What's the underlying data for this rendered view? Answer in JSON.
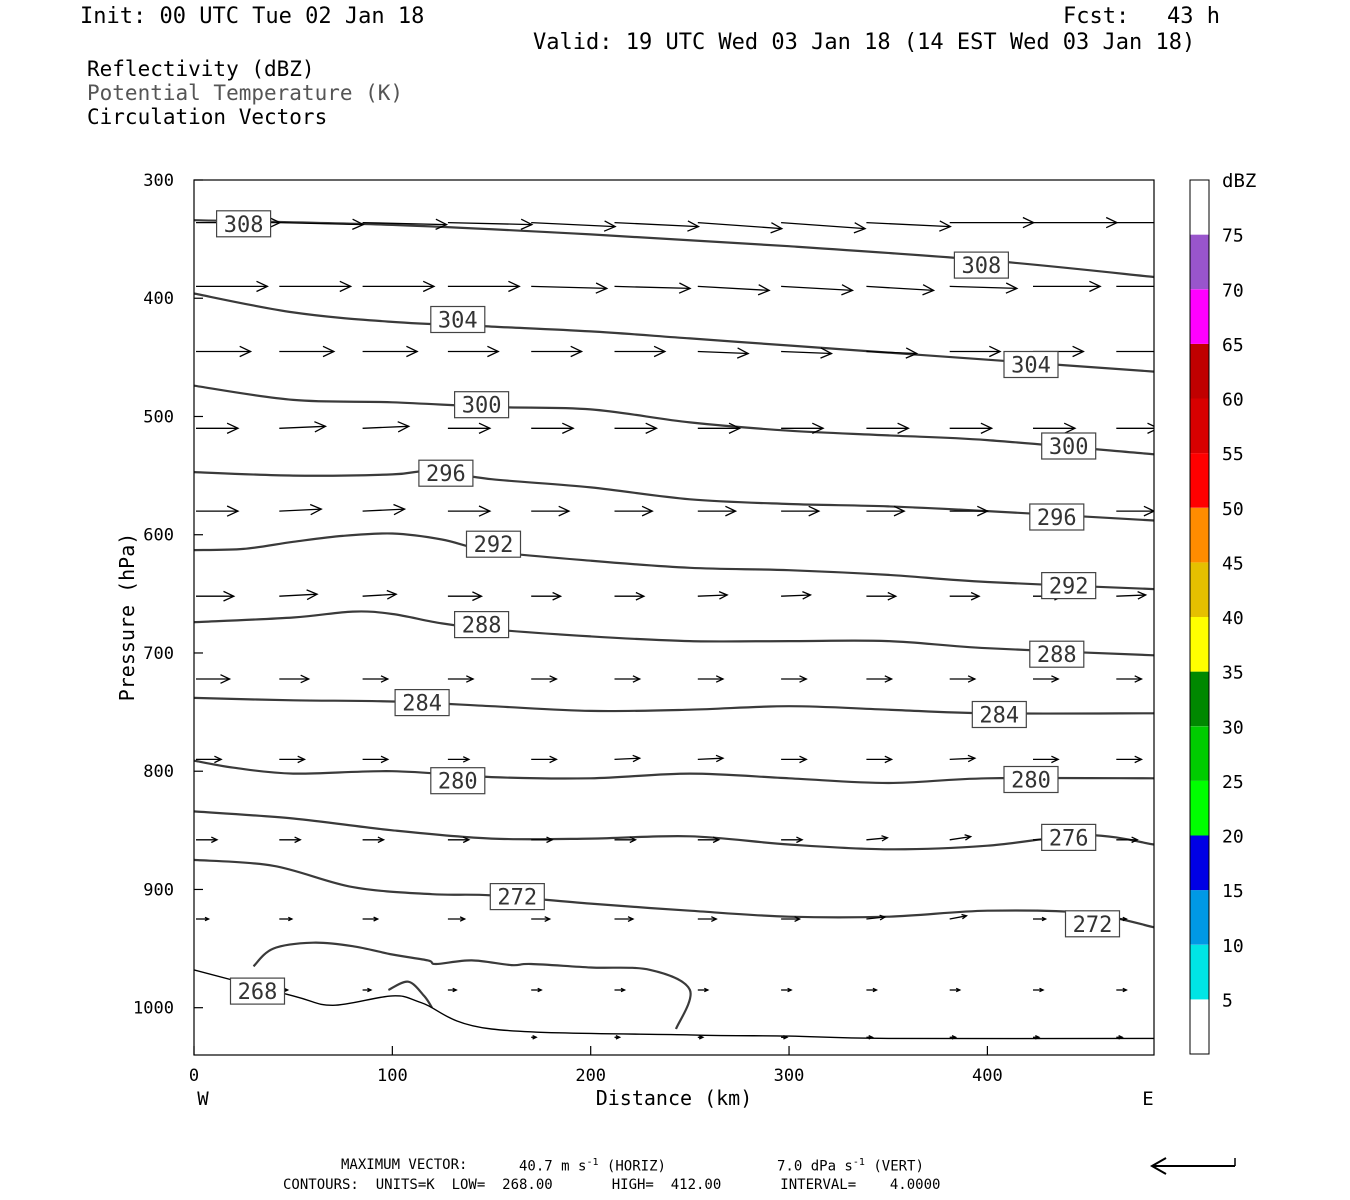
{
  "header": {
    "init": "Init: 00 UTC Tue 02 Jan 18",
    "fcst_label": "Fcst:",
    "fcst_value": "43 h",
    "valid": "Valid: 19 UTC Wed 03 Jan 18 (14 EST Wed 03 Jan 18)"
  },
  "fields": [
    "Reflectivity (dBZ)",
    "Potential Temperature (K)",
    "Circulation Vectors"
  ],
  "chart_data": {
    "type": "line",
    "title": "",
    "xlabel": "Distance (km)",
    "ylabel": "Pressure (hPa)",
    "xlim": [
      0,
      484
    ],
    "ylim": [
      1040,
      300
    ],
    "y_scale": "linear, inverted",
    "grid": false,
    "x_ticks": [
      0,
      100,
      200,
      300,
      400
    ],
    "y_ticks": [
      300,
      400,
      500,
      600,
      700,
      800,
      900,
      1000
    ],
    "x_end_labels": {
      "left": "W",
      "right": "E"
    },
    "contour_units": "K",
    "series": [
      {
        "name": "308",
        "x": [
          0,
          100,
          200,
          300,
          400,
          484
        ],
        "y": [
          334,
          338,
          346,
          356,
          368,
          382
        ]
      },
      {
        "name": "304",
        "x": [
          0,
          50,
          100,
          150,
          200,
          250,
          300,
          350,
          400,
          484
        ],
        "y": [
          396,
          412,
          420,
          424,
          428,
          434,
          440,
          446,
          452,
          462
        ]
      },
      {
        "name": "300",
        "x": [
          0,
          50,
          100,
          150,
          200,
          250,
          300,
          350,
          400,
          484
        ],
        "y": [
          474,
          486,
          488,
          492,
          494,
          505,
          512,
          516,
          520,
          532
        ]
      },
      {
        "name": "296",
        "x": [
          0,
          50,
          100,
          120,
          150,
          200,
          250,
          300,
          350,
          400,
          484
        ],
        "y": [
          547,
          550,
          549,
          546,
          553,
          560,
          570,
          574,
          576,
          580,
          588
        ]
      },
      {
        "name": "292",
        "x": [
          0,
          25,
          50,
          75,
          100,
          125,
          150,
          200,
          250,
          300,
          350,
          400,
          484
        ],
        "y": [
          613,
          612,
          606,
          601,
          599,
          604,
          614,
          622,
          628,
          630,
          634,
          640,
          646
        ]
      },
      {
        "name": "288",
        "x": [
          0,
          50,
          80,
          100,
          125,
          150,
          200,
          250,
          300,
          350,
          400,
          484
        ],
        "y": [
          674,
          670,
          665,
          667,
          675,
          680,
          686,
          690,
          690,
          690,
          696,
          702
        ]
      },
      {
        "name": "284",
        "x": [
          0,
          50,
          100,
          150,
          200,
          250,
          300,
          350,
          400,
          484
        ],
        "y": [
          738,
          740,
          741,
          745,
          749,
          748,
          745,
          748,
          751,
          751
        ]
      },
      {
        "name": "280",
        "x": [
          0,
          20,
          50,
          100,
          150,
          200,
          250,
          300,
          350,
          400,
          484
        ],
        "y": [
          791,
          797,
          802,
          800,
          805,
          806,
          802,
          806,
          810,
          806,
          806
        ]
      },
      {
        "name": "276",
        "x": [
          0,
          50,
          100,
          150,
          200,
          250,
          300,
          350,
          400,
          450,
          484
        ],
        "y": [
          834,
          840,
          850,
          857,
          857,
          855,
          862,
          866,
          863,
          854,
          862
        ]
      },
      {
        "name": "272",
        "x": [
          0,
          40,
          80,
          120,
          150,
          200,
          250,
          300,
          350,
          400,
          450,
          484
        ],
        "y": [
          875,
          880,
          898,
          904,
          905,
          912,
          918,
          923,
          923,
          918,
          920,
          932
        ]
      },
      {
        "name": "268",
        "x": [
          30,
          40,
          60,
          80,
          100,
          118,
          122,
          140,
          160,
          170,
          200,
          230,
          250,
          243
        ],
        "y": [
          965,
          950,
          945,
          948,
          955,
          960,
          963,
          960,
          964,
          963,
          966,
          968,
          985,
          1018
        ]
      },
      {
        "name": "268",
        "x": [
          98,
          108,
          116,
          120
        ],
        "y": [
          985,
          978,
          990,
          1000
        ]
      }
    ],
    "surface": {
      "x": [
        0,
        50,
        70,
        100,
        115,
        150,
        250,
        300,
        350,
        484
      ],
      "y": [
        968,
        990,
        998,
        990,
        996,
        1018,
        1023,
        1024,
        1026,
        1026
      ]
    },
    "contour_labels": [
      {
        "label": "308",
        "x": 25,
        "y": 337
      },
      {
        "label": "308",
        "x": 397,
        "y": 372
      },
      {
        "label": "304",
        "x": 133,
        "y": 418
      },
      {
        "label": "304",
        "x": 422,
        "y": 456
      },
      {
        "label": "300",
        "x": 145,
        "y": 490
      },
      {
        "label": "300",
        "x": 441,
        "y": 525
      },
      {
        "label": "296",
        "x": 127,
        "y": 548
      },
      {
        "label": "296",
        "x": 435,
        "y": 585
      },
      {
        "label": "292",
        "x": 151,
        "y": 608
      },
      {
        "label": "292",
        "x": 441,
        "y": 643
      },
      {
        "label": "288",
        "x": 145,
        "y": 676
      },
      {
        "label": "288",
        "x": 435,
        "y": 701
      },
      {
        "label": "284",
        "x": 115,
        "y": 742
      },
      {
        "label": "284",
        "x": 406,
        "y": 752
      },
      {
        "label": "280",
        "x": 133,
        "y": 808
      },
      {
        "label": "280",
        "x": 422,
        "y": 807
      },
      {
        "label": "276",
        "x": 441,
        "y": 856
      },
      {
        "label": "272",
        "x": 163,
        "y": 906
      },
      {
        "label": "272",
        "x": 453,
        "y": 929
      },
      {
        "label": "268",
        "x": 32,
        "y": 986
      }
    ],
    "vectors": {
      "columns_x": [
        0,
        42,
        84,
        127,
        169,
        211,
        253,
        295,
        338,
        380,
        422,
        464
      ],
      "rows": [
        {
          "p": 336,
          "u": [
            1,
            1,
            1,
            1,
            1,
            1,
            1,
            1,
            1,
            1,
            1,
            1
          ],
          "w": [
            0,
            0.5,
            0.5,
            0.5,
            1,
            1,
            1.5,
            1.5,
            1,
            0,
            0,
            0
          ]
        },
        {
          "p": 390,
          "u": [
            0.85,
            0.85,
            0.85,
            0.85,
            0.9,
            0.9,
            0.85,
            0.85,
            0.8,
            0.8,
            0.8,
            0.8
          ],
          "w": [
            0,
            0,
            0,
            0,
            0.5,
            0.5,
            1,
            1,
            1,
            0.5,
            0,
            0
          ]
        },
        {
          "p": 445,
          "u": [
            0.65,
            0.65,
            0.65,
            0.6,
            0.6,
            0.6,
            0.6,
            0.6,
            0.6,
            0.6,
            0.6,
            0.6
          ],
          "w": [
            0,
            0,
            0,
            0,
            0,
            0,
            0.5,
            0.5,
            0.5,
            0,
            0,
            0
          ]
        },
        {
          "p": 510,
          "u": [
            0.5,
            0.55,
            0.55,
            0.5,
            0.5,
            0.5,
            0.5,
            0.5,
            0.5,
            0.5,
            0.5,
            0.5
          ],
          "w": [
            0,
            -0.5,
            -0.5,
            0,
            0,
            0,
            0,
            0,
            0,
            0,
            0,
            0
          ]
        },
        {
          "p": 580,
          "u": [
            0.5,
            0.5,
            0.5,
            0.5,
            0.45,
            0.45,
            0.45,
            0.45,
            0.45,
            0.45,
            0.45,
            0.45
          ],
          "w": [
            0,
            -0.5,
            -0.5,
            0,
            0,
            0,
            0,
            0,
            0,
            0,
            0,
            0
          ]
        },
        {
          "p": 652,
          "u": [
            0.45,
            0.45,
            0.4,
            0.4,
            0.35,
            0.35,
            0.35,
            0.35,
            0.35,
            0.35,
            0.35,
            0.35
          ],
          "w": [
            0,
            -0.5,
            -0.5,
            0,
            0,
            0,
            -0.3,
            -0.3,
            0,
            0,
            0,
            -0.3
          ]
        },
        {
          "p": 722,
          "u": [
            0.4,
            0.35,
            0.3,
            0.3,
            0.3,
            0.3,
            0.3,
            0.3,
            0.3,
            0.3,
            0.3,
            0.3
          ],
          "w": [
            0,
            0,
            0,
            0,
            0,
            0,
            0,
            0,
            0,
            0,
            0,
            0
          ]
        },
        {
          "p": 790,
          "u": [
            0.3,
            0.3,
            0.3,
            0.25,
            0.3,
            0.3,
            0.3,
            0.3,
            0.3,
            0.3,
            0.3,
            0.3
          ],
          "w": [
            0,
            0,
            0,
            0,
            0,
            -0.3,
            -0.3,
            0,
            0,
            -0.3,
            0,
            0
          ]
        },
        {
          "p": 858,
          "u": [
            0.25,
            0.25,
            0.25,
            0.25,
            0.25,
            0.25,
            0.25,
            0.25,
            0.25,
            0.25,
            0.25,
            0.25
          ],
          "w": [
            0,
            0,
            0,
            0,
            0,
            0,
            0,
            0,
            -0.5,
            -0.8,
            0,
            0
          ]
        },
        {
          "p": 925,
          "u": [
            0.15,
            0.15,
            0.18,
            0.2,
            0.22,
            0.22,
            0.22,
            0.22,
            0.22,
            0.2,
            0.15,
            0.12
          ],
          "w": [
            0,
            0,
            0,
            0,
            0,
            0,
            0,
            0,
            -0.5,
            -0.8,
            0,
            0
          ]
        },
        {
          "p": 985,
          "u": [
            0,
            0.1,
            0.1,
            0.1,
            0.12,
            0.12,
            0.12,
            0.12,
            0.12,
            0.12,
            0.12,
            0.12
          ],
          "w": [
            0,
            0,
            0,
            0,
            0,
            0,
            0,
            0,
            0,
            0,
            0,
            0
          ]
        },
        {
          "p": 1025,
          "u": [
            0,
            0,
            0,
            0,
            0.06,
            0.06,
            0.06,
            0.07,
            0.07,
            0.07,
            0.07,
            0.07
          ],
          "w": [
            0,
            0,
            0,
            0,
            0,
            0,
            0,
            0,
            0,
            0,
            0,
            0
          ]
        }
      ]
    },
    "colorbar": {
      "unit_label": "dBZ",
      "levels": [
        {
          "label": "",
          "color": "#ffffff"
        },
        {
          "label": "5",
          "color": "#00e5e5"
        },
        {
          "label": "10",
          "color": "#0099e5"
        },
        {
          "label": "15",
          "color": "#0000e5"
        },
        {
          "label": "20",
          "color": "#00ff00"
        },
        {
          "label": "25",
          "color": "#00cc00"
        },
        {
          "label": "30",
          "color": "#008800"
        },
        {
          "label": "35",
          "color": "#ffff00"
        },
        {
          "label": "40",
          "color": "#e5c000"
        },
        {
          "label": "45",
          "color": "#ff8c00"
        },
        {
          "label": "50",
          "color": "#ff0000"
        },
        {
          "label": "55",
          "color": "#d80000"
        },
        {
          "label": "60",
          "color": "#c00000"
        },
        {
          "label": "65",
          "color": "#ff00ff"
        },
        {
          "label": "70",
          "color": "#9955cc"
        },
        {
          "label": "75",
          "color": "#ffffff"
        }
      ]
    }
  },
  "footer": {
    "max_vector_label": "MAXIMUM VECTOR:",
    "horiz_value": "40.7 m s",
    "horiz_exp": "-1",
    "horiz_tag": "(HORIZ)",
    "vert_value": "7.0 dPa s",
    "vert_exp": "-1",
    "vert_tag": "(VERT)",
    "contours_line": "CONTOURS:  UNITS=K  LOW=  268.00       HIGH=  412.00       INTERVAL=    4.0000"
  }
}
